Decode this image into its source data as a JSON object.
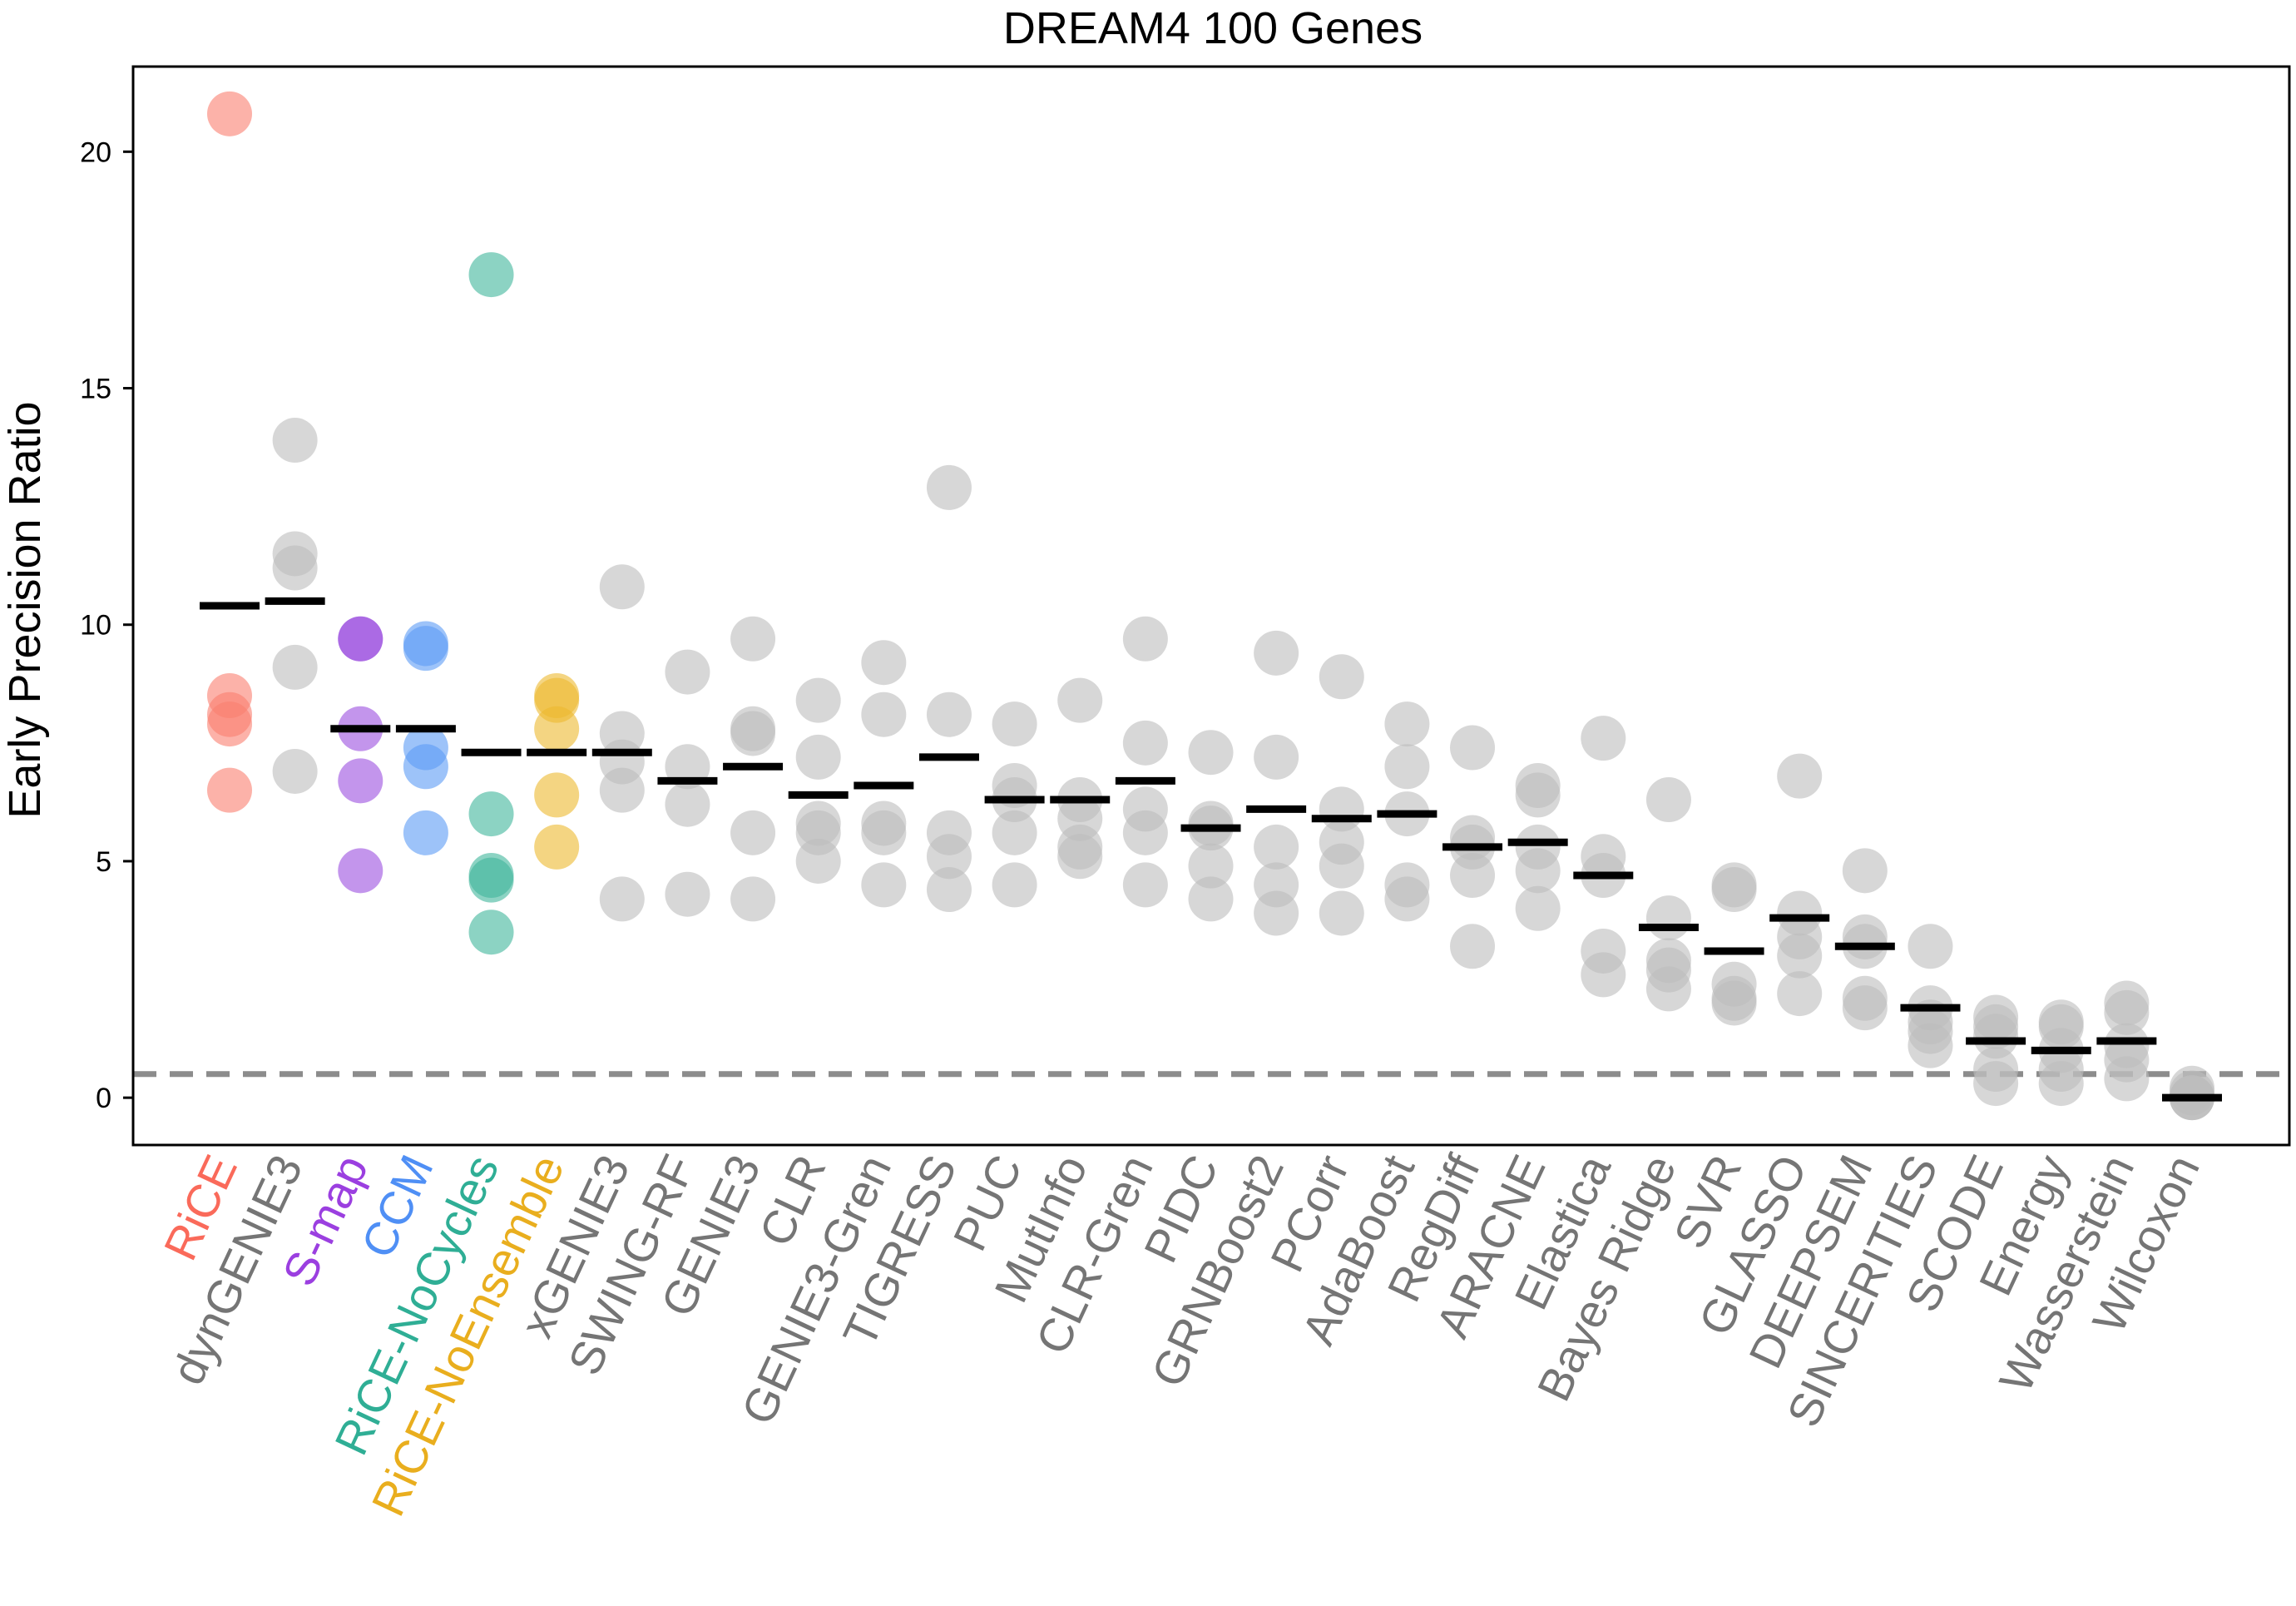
{
  "chart_data": {
    "type": "scatter",
    "title": "DREAM4 100 Genes",
    "xlabel": "",
    "ylabel": "Early Precision Ratio",
    "ylim": [
      -1,
      21.8
    ],
    "yticks": [
      0,
      5,
      10,
      15,
      20
    ],
    "grid": false,
    "legend": "none",
    "reference_line": {
      "y": 0.5,
      "style": "dashed",
      "color": "#8c8c8c"
    },
    "median_color": "#000000",
    "default_color": "#bdbdbd",
    "series": [
      {
        "name": "RiCE",
        "color": "#fa7f6f",
        "values": [
          20.8,
          8.5,
          8.1,
          7.9,
          6.5
        ],
        "median": 10.4
      },
      {
        "name": "dynGENIE3",
        "color": "#bdbdbd",
        "values": [
          13.9,
          11.5,
          11.2,
          9.1,
          6.9
        ],
        "median": 10.5
      },
      {
        "name": "S-map",
        "color": "#9b4fe0",
        "values": [
          9.7,
          9.7,
          7.8,
          6.7,
          4.8
        ],
        "median": 7.8
      },
      {
        "name": "CCM",
        "color": "#5b9bf5",
        "values": [
          9.6,
          9.5,
          7.4,
          7.0,
          5.6
        ],
        "median": 7.8
      },
      {
        "name": "RiCE-NoCycles",
        "color": "#3fb59b",
        "values": [
          17.4,
          6.0,
          4.7,
          4.6,
          3.5
        ],
        "median": 7.3
      },
      {
        "name": "RiCE-NoEnsemble",
        "color": "#edb92e",
        "values": [
          8.5,
          8.4,
          7.8,
          6.4,
          5.3
        ],
        "median": 7.3
      },
      {
        "name": "xGENIE3",
        "color": "#bdbdbd",
        "values": [
          10.8,
          7.7,
          7.1,
          6.5,
          4.2
        ],
        "median": 7.3
      },
      {
        "name": "SWING-RF",
        "color": "#bdbdbd",
        "values": [
          9.0,
          7.0,
          6.2,
          4.3
        ],
        "median": 6.7
      },
      {
        "name": "GENIE3",
        "color": "#bdbdbd",
        "values": [
          9.7,
          7.8,
          7.7,
          5.6,
          4.2
        ],
        "median": 7.0
      },
      {
        "name": "CLR",
        "color": "#bdbdbd",
        "values": [
          8.4,
          7.2,
          5.8,
          5.6,
          5.0
        ],
        "median": 6.4
      },
      {
        "name": "GENIE3-Gren",
        "color": "#bdbdbd",
        "values": [
          9.2,
          8.1,
          5.8,
          5.6,
          4.5
        ],
        "median": 6.6
      },
      {
        "name": "TIGRESS",
        "color": "#bdbdbd",
        "values": [
          12.9,
          8.1,
          5.6,
          5.1,
          4.4
        ],
        "median": 7.2
      },
      {
        "name": "PUC",
        "color": "#bdbdbd",
        "values": [
          7.9,
          6.6,
          6.3,
          5.6,
          4.5
        ],
        "median": 6.3
      },
      {
        "name": "MutInfo",
        "color": "#bdbdbd",
        "values": [
          8.4,
          6.3,
          5.9,
          5.3,
          5.1
        ],
        "median": 6.3
      },
      {
        "name": "CLR-Gren",
        "color": "#bdbdbd",
        "values": [
          9.7,
          7.5,
          6.1,
          5.6,
          4.5
        ],
        "median": 6.7
      },
      {
        "name": "PIDC",
        "color": "#bdbdbd",
        "values": [
          7.3,
          5.8,
          5.7,
          4.9,
          4.2
        ],
        "median": 5.7
      },
      {
        "name": "GRNBoost2",
        "color": "#bdbdbd",
        "values": [
          9.4,
          7.2,
          5.3,
          4.5,
          3.9
        ],
        "median": 6.1
      },
      {
        "name": "PCorr",
        "color": "#bdbdbd",
        "values": [
          8.9,
          6.1,
          5.4,
          4.9,
          3.9
        ],
        "median": 5.9
      },
      {
        "name": "AdaBoost",
        "color": "#bdbdbd",
        "values": [
          7.9,
          7.0,
          6.0,
          4.5,
          4.2
        ],
        "median": 6.0
      },
      {
        "name": "RegDiff",
        "color": "#bdbdbd",
        "values": [
          7.4,
          5.5,
          5.3,
          4.7,
          3.2
        ],
        "median": 5.3
      },
      {
        "name": "ARACNE",
        "color": "#bdbdbd",
        "values": [
          6.6,
          6.4,
          5.3,
          4.8,
          4.0
        ],
        "median": 5.4
      },
      {
        "name": "Elastica",
        "color": "#bdbdbd",
        "values": [
          7.6,
          5.1,
          4.7,
          3.1,
          2.6
        ],
        "median": 4.7
      },
      {
        "name": "Bayes Ridge",
        "color": "#bdbdbd",
        "values": [
          6.3,
          3.8,
          2.9,
          2.7,
          2.3
        ],
        "median": 3.6
      },
      {
        "name": "SVR",
        "color": "#bdbdbd",
        "values": [
          4.5,
          4.4,
          2.4,
          2.1,
          2.0
        ],
        "median": 3.1
      },
      {
        "name": "GLASSO",
        "color": "#bdbdbd",
        "values": [
          6.8,
          3.9,
          3.4,
          3.0,
          2.2
        ],
        "median": 3.8
      },
      {
        "name": "DEEPSEM",
        "color": "#bdbdbd",
        "values": [
          4.8,
          3.4,
          3.2,
          2.1,
          1.9
        ],
        "median": 3.2
      },
      {
        "name": "SINCERITIES",
        "color": "#bdbdbd",
        "values": [
          3.2,
          1.9,
          1.6,
          1.4,
          1.1
        ],
        "median": 1.9
      },
      {
        "name": "SCODE",
        "color": "#bdbdbd",
        "values": [
          1.7,
          1.5,
          1.3,
          0.6,
          0.3
        ],
        "median": 1.2
      },
      {
        "name": "Energy",
        "color": "#bdbdbd",
        "values": [
          1.6,
          1.5,
          1.0,
          0.6,
          0.3
        ],
        "median": 1.0
      },
      {
        "name": "Wasserstein",
        "color": "#bdbdbd",
        "values": [
          2.0,
          1.8,
          1.1,
          0.8,
          0.4
        ],
        "median": 1.2
      },
      {
        "name": "Wilcoxon",
        "color": "#bdbdbd",
        "values": [
          0.2,
          0.1,
          0.0,
          0.0,
          0.0
        ],
        "median": 0.0
      }
    ],
    "label_colors": {
      "RiCE": "#fa6a5a",
      "S-map": "#9b3fe0",
      "CCM": "#4f8ff5",
      "RiCE-NoCycles": "#2fae95",
      "RiCE-NoEnsemble": "#e9ae1e",
      "default": "#757575"
    }
  }
}
